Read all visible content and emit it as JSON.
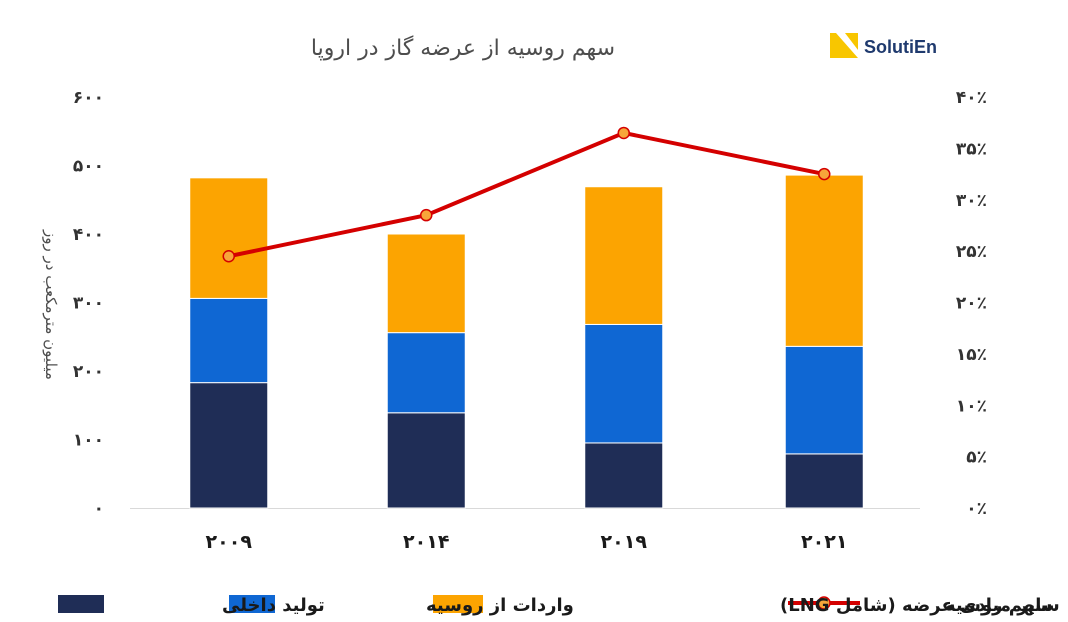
{
  "chart_data": {
    "type": "bar",
    "stacked": true,
    "title": "سهم روسیه از عرضه گاز در اروپا",
    "ylabel": "میلیون مترمکعب در روز",
    "ylim": [
      0,
      600
    ],
    "y_ticks": [
      "۰",
      "۱۰۰",
      "۲۰۰",
      "۳۰۰",
      "۴۰۰",
      "۵۰۰",
      "۶۰۰"
    ],
    "y2lim": [
      0,
      40
    ],
    "y2_ticks": [
      "۰٪",
      "۵٪",
      "۱۰٪",
      "۱۵٪",
      "۲۰٪",
      "۲۵٪",
      "۳۰٪",
      "۳۵٪",
      "۴۰٪"
    ],
    "categories": [
      "۲۰۰۹",
      "۲۰۱۴",
      "۲۰۱۹",
      "۲۰۲۱"
    ],
    "series": [
      {
        "name": "تولید داخلی",
        "color": "#1f2d56",
        "values": [
          183,
          139,
          95,
          79
        ]
      },
      {
        "name": "واردات از روسیه",
        "color": "#0f67d3",
        "values": [
          123,
          117,
          173,
          157
        ]
      },
      {
        "name": "سایر مبادی عرضه (شامل LNG)",
        "color": "#fca401",
        "values": [
          176,
          144,
          201,
          250
        ]
      }
    ],
    "line_series": {
      "name": "سهم روسیه",
      "axis": "secondary",
      "color": "#d40000",
      "marker_color": "#f7a63a",
      "values": [
        24.5,
        28.5,
        36.5,
        32.5
      ]
    },
    "legend_position": "bottom",
    "legend_order": [
      "سهم روسیه",
      "سایر مبادی عرضه (شامل LNG)",
      "واردات از روسیه",
      "تولید داخلی"
    ]
  },
  "logo": {
    "text": "SolutiEn",
    "accent": "#f8c600",
    "text_color": "#1f3a6e"
  }
}
